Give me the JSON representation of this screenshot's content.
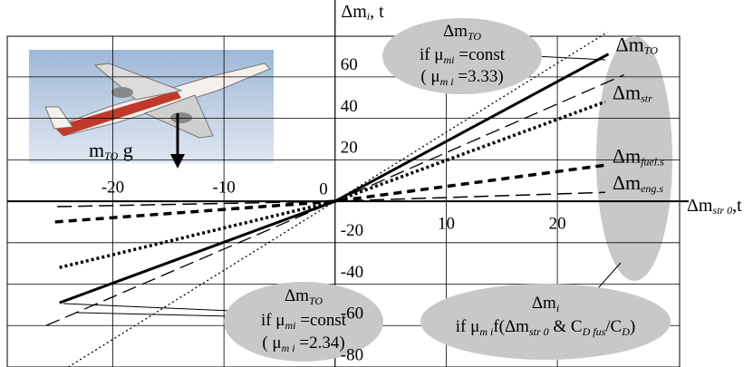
{
  "chart_data": {
    "type": "line",
    "ylabel": [
      "Δm",
      "i",
      ", t"
    ],
    "xlabel": [
      "Δm",
      "str 0",
      ",t"
    ],
    "xlim": [
      -29.5,
      31
    ],
    "ylim": [
      -80,
      84
    ],
    "xticks": [
      -20,
      -10,
      10,
      20
    ],
    "yticks": [
      -80,
      -60,
      -40,
      -20,
      0,
      20,
      40,
      60
    ],
    "grid": true,
    "series": [
      {
        "name": [
          "Δm",
          "TO"
        ],
        "color": "#000",
        "style": "solid",
        "width": 3,
        "x": [
          -24.8,
          0,
          24.6
        ],
        "values": [
          -49,
          0,
          71
        ]
      },
      {
        "color": "#000",
        "style": "dotted",
        "width": 1.3,
        "x": [
          -24,
          0,
          24.5
        ],
        "values": [
          -80,
          0,
          81.6
        ]
      },
      {
        "color": "#000",
        "style": "dashed",
        "width": 1.3,
        "x": [
          -26,
          0,
          26
        ],
        "values": [
          -60,
          0,
          61
        ]
      },
      {
        "name": [
          "Δm",
          "str"
        ],
        "color": "#000",
        "style": "dotted",
        "width": 3.5,
        "x": [
          -24.8,
          0,
          24.3
        ],
        "values": [
          -32,
          0,
          48
        ]
      },
      {
        "name": [
          "Δm",
          "fuel.s"
        ],
        "color": "#000",
        "style": "dashed",
        "width": 3.5,
        "x": [
          -25.2,
          0,
          24.3
        ],
        "values": [
          -10,
          0,
          17.4
        ]
      },
      {
        "name": [
          "Δm",
          "eng.s"
        ],
        "color": "#000",
        "style": "dashed",
        "width": 1.5,
        "x": [
          -25,
          0,
          24.3
        ],
        "values": [
          -2.6,
          0,
          4.3
        ]
      }
    ],
    "annotations": [
      [
        [
          "Δm",
          "TO"
        ],
        [
          "if μ",
          "mi",
          " =const"
        ],
        [
          "( μ",
          "m i",
          " =3.33)"
        ]
      ],
      [
        [
          "Δm",
          "TO"
        ],
        [
          "if μ",
          "mi",
          " =const"
        ],
        [
          "( μ",
          "m i",
          " =2.34)"
        ]
      ],
      [
        [
          "Δm",
          "i"
        ],
        [
          "if μ",
          "m i",
          "f(Δm",
          "str 0",
          " & C",
          "D fus",
          "/C",
          "D",
          ")"
        ]
      ]
    ],
    "image_caption": [
      "m",
      "TO",
      " g"
    ]
  }
}
